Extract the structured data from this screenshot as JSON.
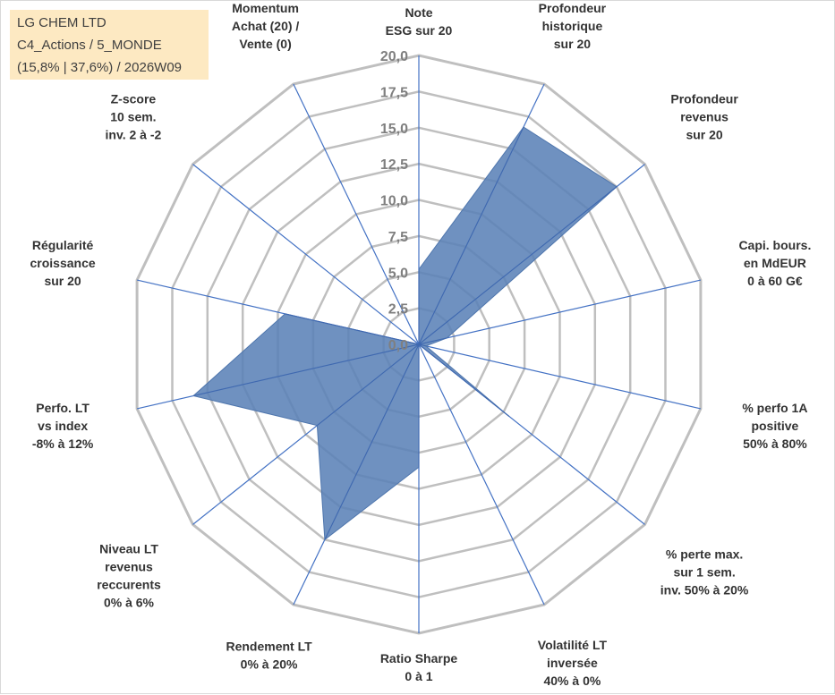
{
  "info_box": {
    "line1": "LG CHEM LTD",
    "line2": "C4_Actions / 5_MONDE",
    "line3": "(15,8% | 37,6%) / 2026W09"
  },
  "chart_data": {
    "type": "radar",
    "title": "",
    "axis_range": [
      0,
      20
    ],
    "tick_labels": [
      "0,0",
      "2,5",
      "5,0",
      "7,5",
      "10,0",
      "12,5",
      "15,0",
      "17,5",
      "20,0"
    ],
    "axes": [
      {
        "label": [
          "Note",
          "ESG sur 20"
        ],
        "value": 5.2
      },
      {
        "label": [
          "Profondeur",
          "historique",
          "sur 20"
        ],
        "value": 16.7
      },
      {
        "label": [
          "Profondeur",
          "revenus",
          "sur 20"
        ],
        "value": 17.5
      },
      {
        "label": [
          "Capi. bours.",
          "en MdEUR",
          "0 à 60 G€"
        ],
        "value": 2.0
      },
      {
        "label": [
          "% perfo 1A",
          "positive",
          "50% à 80%"
        ],
        "value": 0.5
      },
      {
        "label": [
          "% perte max.",
          "sur 1 sem.",
          "inv. 50% à 20%"
        ],
        "value": 8.0
      },
      {
        "label": [
          "Volatilité LT",
          "inversée",
          "40% à 0%"
        ],
        "value": 0.0
      },
      {
        "label": [
          "Ratio Sharpe",
          "0 à 1"
        ],
        "value": 8.5
      },
      {
        "label": [
          "Rendement LT",
          "0% à 20%"
        ],
        "value": 15.0
      },
      {
        "label": [
          "Niveau LT",
          "revenus",
          "reccurents",
          "0% à 6%"
        ],
        "value": 9.0
      },
      {
        "label": [
          "Perfo. LT",
          "vs index",
          "-8% à 12%"
        ],
        "value": 16.0
      },
      {
        "label": [
          "Régularité",
          "croissance",
          "sur 20"
        ],
        "value": 9.5
      },
      {
        "label": [
          "Z-score",
          "10 sem.",
          "inv. 2 à -2"
        ],
        "value": 0.0
      },
      {
        "label": [
          "Momentum",
          "Achat (20) /",
          "Vente (0)"
        ],
        "value": 0.0
      }
    ],
    "series": [
      {
        "name": "LG CHEM LTD",
        "color": "#5b82b7"
      }
    ],
    "grid_color": "#bfbfbf",
    "spoke_color": "#4472c4"
  }
}
